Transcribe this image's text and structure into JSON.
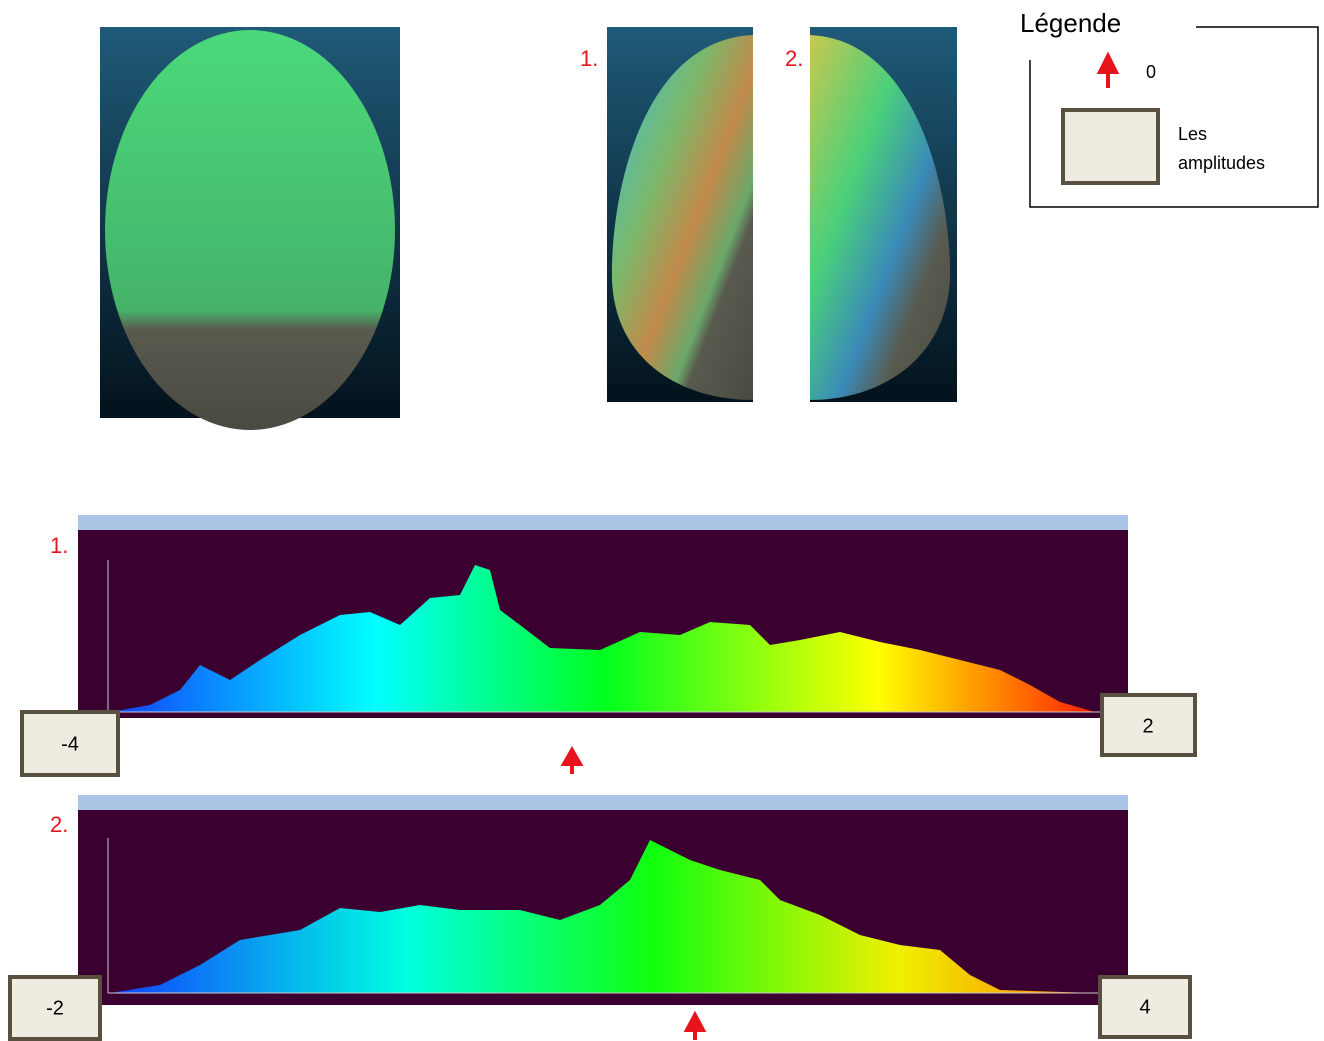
{
  "views": {
    "labels": [
      "1.",
      "2."
    ]
  },
  "legend": {
    "title": "Légende",
    "arrow_label": "0",
    "box_label_lines": [
      "Les",
      "amplitudes"
    ]
  },
  "histograms": [
    {
      "label": "1.",
      "min_box": "-4",
      "max_box": "2"
    },
    {
      "label": "2.",
      "min_box": "-2",
      "max_box": "4"
    }
  ]
}
